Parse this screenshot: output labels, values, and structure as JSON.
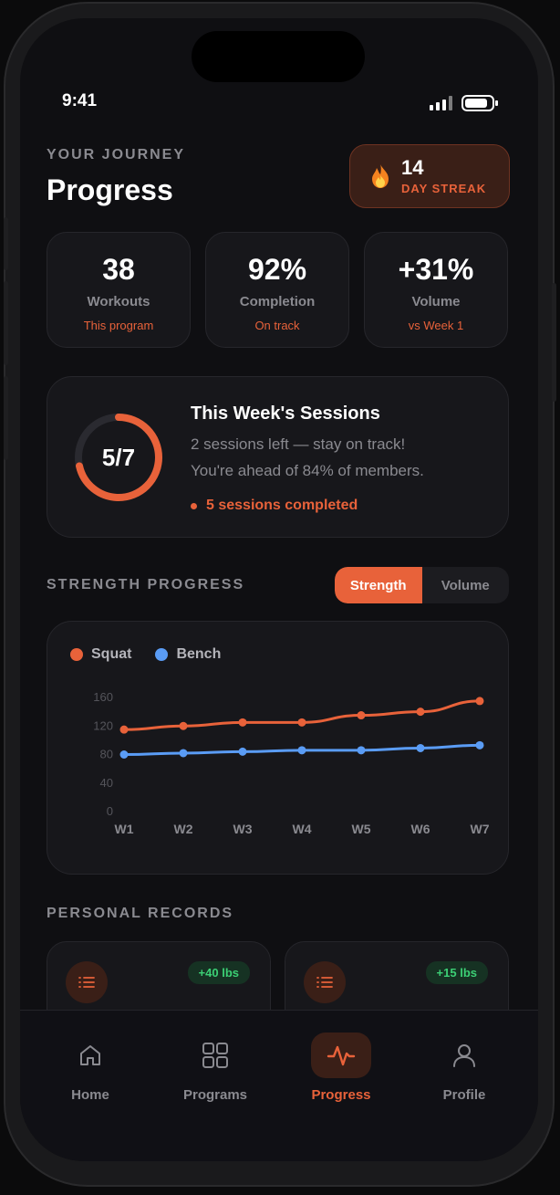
{
  "status": {
    "time": "9:41"
  },
  "header": {
    "eyebrow": "YOUR JOURNEY",
    "title": "Progress",
    "streak": {
      "value": "14",
      "label": "DAY STREAK",
      "icon": "fire-icon"
    }
  },
  "stats": [
    {
      "value": "38",
      "label": "Workouts",
      "sub": "This program"
    },
    {
      "value": "92%",
      "label": "Completion",
      "sub": "On track"
    },
    {
      "value": "+31%",
      "label": "Volume",
      "sub": "vs Week 1"
    }
  ],
  "sessions": {
    "ring_text": "5/7",
    "completed": 5,
    "total": 7,
    "title": "This Week's Sessions",
    "line1": "2 sessions left — stay on track!",
    "line2": "You're ahead of 84% of members.",
    "done_text": "5 sessions completed"
  },
  "strength": {
    "section_title": "STRENGTH PROGRESS",
    "toggle": {
      "active": "Strength",
      "inactive": "Volume"
    }
  },
  "colors": {
    "accent": "#e8623a",
    "squat": "#e8623a",
    "bench": "#5a9cf5",
    "success": "#3ccf75"
  },
  "chart_data": {
    "type": "line",
    "categories": [
      "W1",
      "W2",
      "W3",
      "W4",
      "W5",
      "W6",
      "W7"
    ],
    "series": [
      {
        "name": "Squat",
        "values": [
          115,
          120,
          125,
          125,
          135,
          140,
          155
        ]
      },
      {
        "name": "Bench",
        "values": [
          80,
          82,
          84,
          86,
          86,
          89,
          93
        ]
      }
    ],
    "y_ticks": [
      0,
      40,
      80,
      120,
      160
    ],
    "ylim": [
      0,
      160
    ],
    "legend": "top-left",
    "grid": false
  },
  "records": {
    "section_title": "PERSONAL RECORDS",
    "items": [
      {
        "badge": "+40 lbs",
        "icon": "list-icon"
      },
      {
        "badge": "+15 lbs",
        "icon": "list-icon"
      }
    ]
  },
  "tabbar": [
    {
      "label": "Home",
      "icon": "home-icon"
    },
    {
      "label": "Programs",
      "icon": "grid-icon"
    },
    {
      "label": "Progress",
      "icon": "activity-icon",
      "active": true
    },
    {
      "label": "Profile",
      "icon": "user-icon"
    }
  ]
}
